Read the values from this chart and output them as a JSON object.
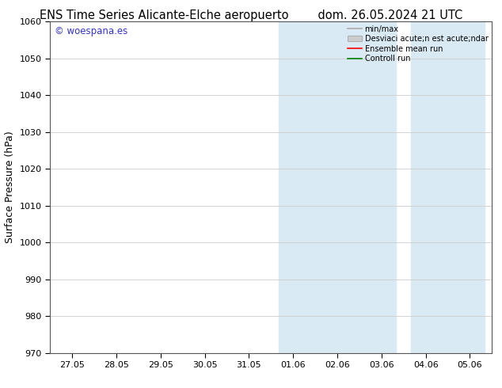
{
  "title_left": "ENS Time Series Alicante-Elche aeropuerto",
  "title_right": "dom. 26.05.2024 21 UTC",
  "ylabel": "Surface Pressure (hPa)",
  "ylim": [
    970,
    1060
  ],
  "yticks": [
    970,
    980,
    990,
    1000,
    1010,
    1020,
    1030,
    1040,
    1050,
    1060
  ],
  "xtick_labels": [
    "27.05",
    "28.05",
    "29.05",
    "30.05",
    "31.05",
    "01.06",
    "02.06",
    "03.06",
    "04.06",
    "05.06"
  ],
  "xtick_positions": [
    0,
    1,
    2,
    3,
    4,
    5,
    6,
    7,
    8,
    9
  ],
  "xlim": [
    -0.5,
    9.5
  ],
  "band1_x1": 4.67,
  "band1_x2": 5.33,
  "band2_x1": 5.33,
  "band2_x2": 7.33,
  "band3_x1": 7.67,
  "band3_x2": 8.33,
  "band4_x1": 8.33,
  "band4_x2": 9.33,
  "shaded_color": "#daeaf5",
  "watermark": "© woespana.es",
  "watermark_color": "#3333cc",
  "legend_label1": "min/max",
  "legend_label2": "Desviaci acute;n est acute;ndar",
  "legend_label3": "Ensemble mean run",
  "legend_label4": "Controll run",
  "legend_color1": "#aaaaaa",
  "legend_color2": "#cccccc",
  "legend_color3": "#ff0000",
  "legend_color4": "#008000",
  "bg_color": "#ffffff",
  "plot_bg_color": "#ffffff",
  "grid_color": "#cccccc",
  "title_fontsize": 10.5,
  "tick_fontsize": 8,
  "ylabel_fontsize": 9
}
